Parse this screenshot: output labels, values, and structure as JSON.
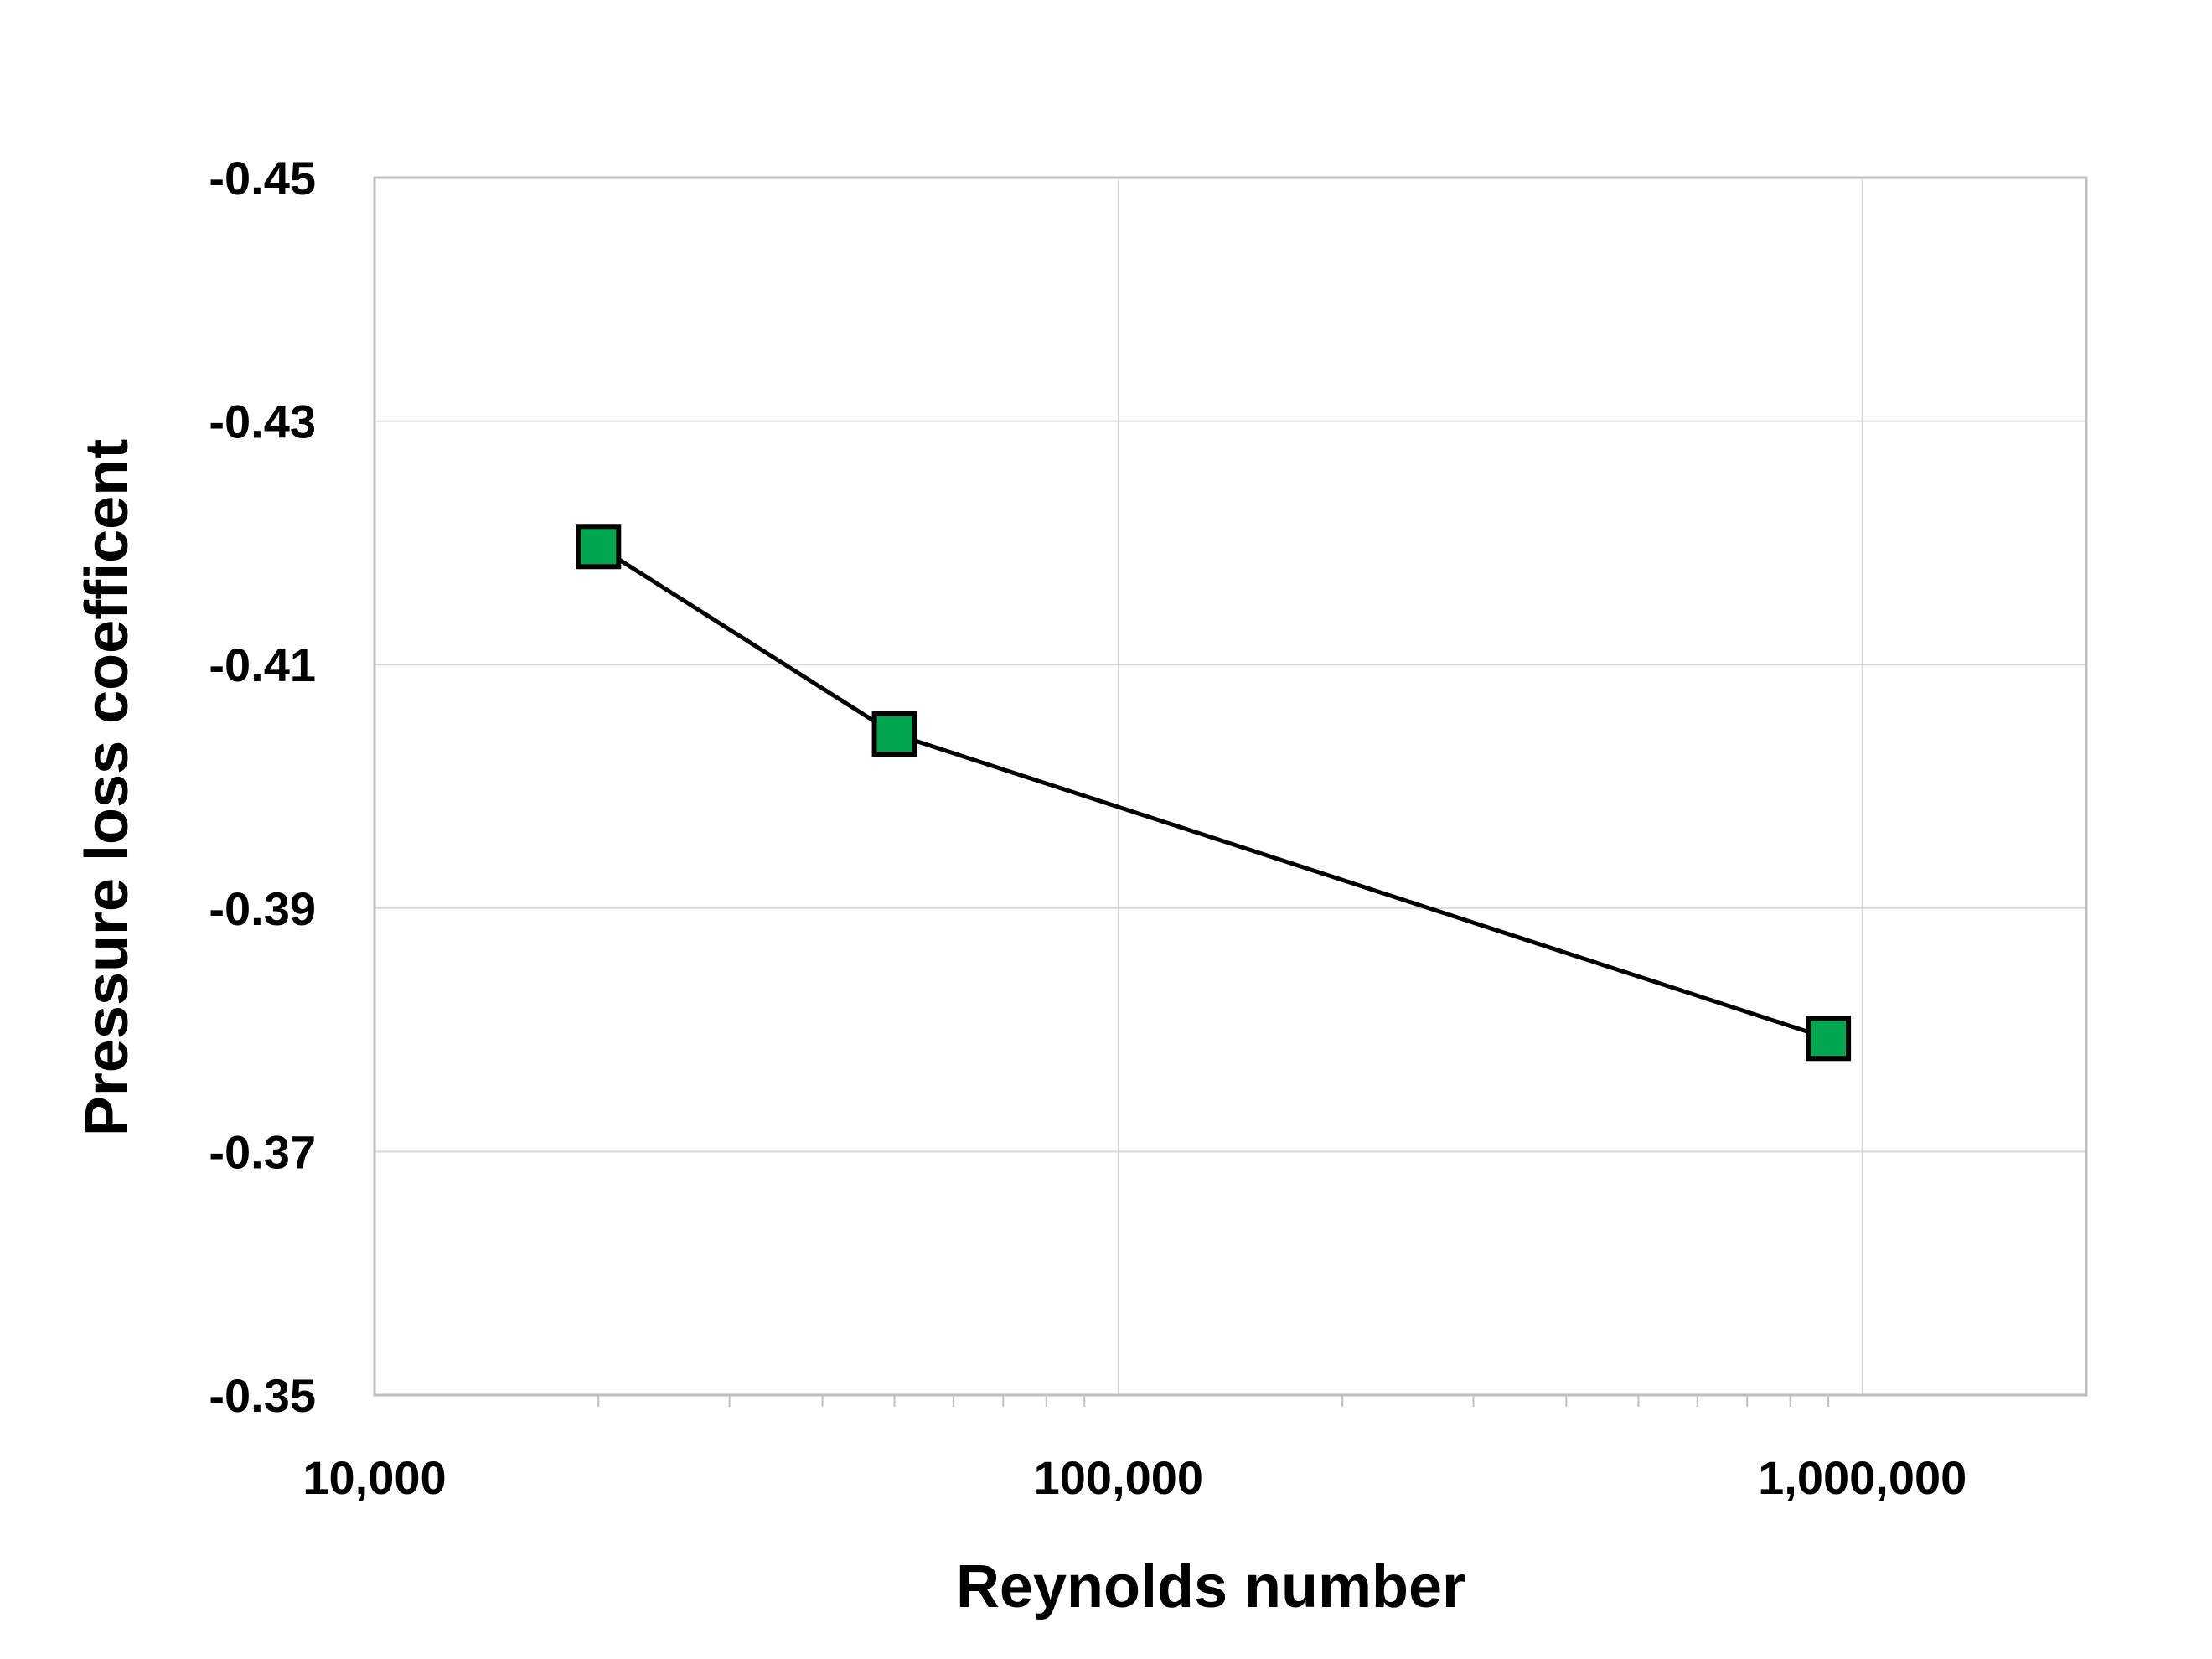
{
  "chart_data": {
    "type": "line",
    "title": "",
    "xlabel": "Reynolds number",
    "ylabel": "Pressure loss coefficent",
    "x_scale": "log",
    "xlim": [
      10000,
      2000000
    ],
    "ylim": [
      -0.45,
      -0.35
    ],
    "y_reversed": true,
    "grid": true,
    "x_tick_values": [
      10000,
      100000,
      1000000
    ],
    "x_tick_labels": [
      "10,000",
      "100,000",
      "1,000,000"
    ],
    "y_tick_values": [
      -0.45,
      -0.43,
      -0.41,
      -0.39,
      -0.37,
      -0.35
    ],
    "y_tick_labels": [
      "-0.45",
      "-0.43",
      "-0.41",
      "-0.39",
      "-0.37",
      "-0.35"
    ],
    "legend": "none",
    "series": [
      {
        "x": [
          20000,
          50000,
          900000
        ],
        "y": [
          -0.4197,
          -0.4043,
          -0.3793
        ],
        "line_color": "#000000",
        "marker": "square",
        "marker_color": "#00A650"
      }
    ]
  }
}
